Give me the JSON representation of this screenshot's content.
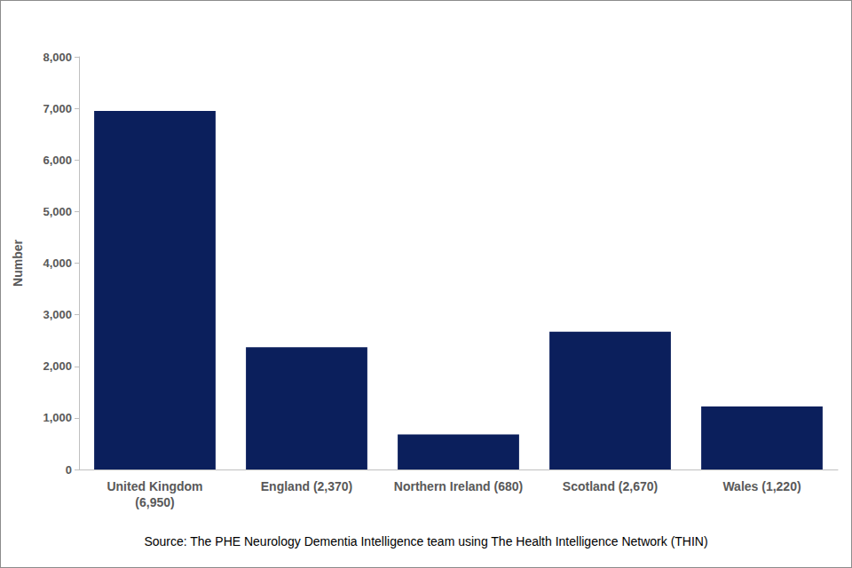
{
  "chart_data": {
    "type": "bar",
    "categories": [
      "United Kingdom (6,950)",
      "England (2,370)",
      "Northern Ireland (680)",
      "Scotland (2,670)",
      "Wales (1,220)"
    ],
    "values": [
      6950,
      2370,
      680,
      2670,
      1220
    ],
    "color": "#0b1f5c",
    "y_label": "Number",
    "source": "Source: The PHE Neurology Dementia Intelligence team using The Health Intelligence Network (THIN)",
    "ylim": [
      0,
      8000
    ],
    "yticks": [
      0,
      {
        "value": 1000,
        "label": "1,000"
      },
      {
        "value": 2000,
        "label": "2,000"
      },
      {
        "value": 3000,
        "label": "3,000"
      },
      {
        "value": 4000,
        "label": "4,000"
      },
      {
        "value": 5000,
        "label": "5,000"
      },
      {
        "value": 6000,
        "label": "6,000"
      },
      {
        "value": 7000,
        "label": "7,000"
      },
      {
        "value": 8000,
        "label": "8,000"
      }
    ],
    "grid": false
  }
}
